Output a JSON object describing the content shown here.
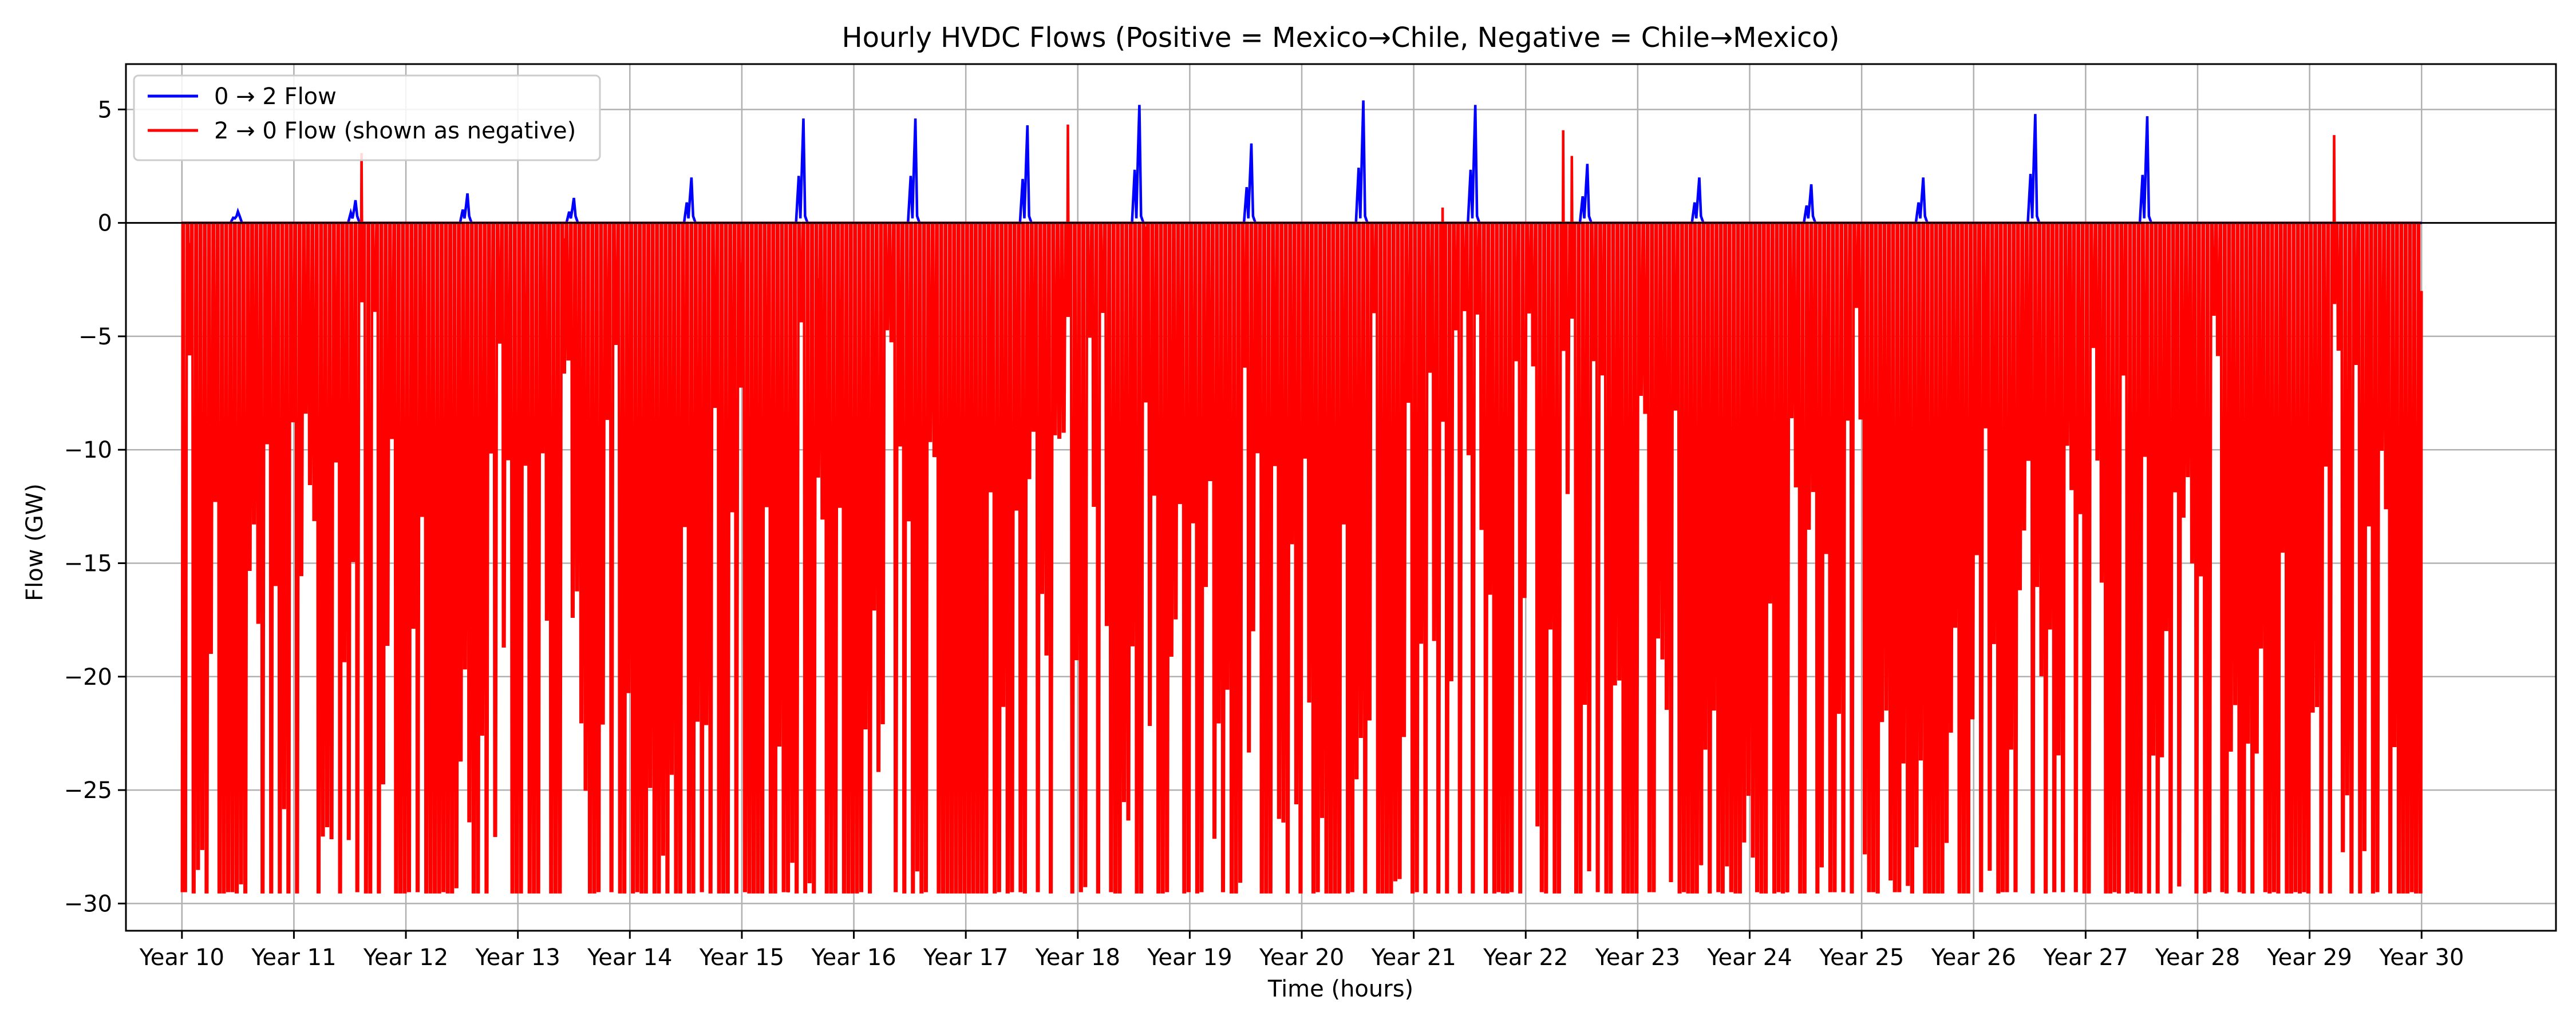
{
  "chart_data": {
    "type": "line",
    "title": "Hourly HVDC Flows (Positive = Mexico→Chile, Negative = Chile→Mexico)",
    "xlabel": "Time (hours)",
    "ylabel": "Flow (GW)",
    "xlim": [
      9.5,
      31.2
    ],
    "ylim": [
      -31.2,
      7
    ],
    "x_ticks": [
      10,
      11,
      12,
      13,
      14,
      15,
      16,
      17,
      18,
      19,
      20,
      21,
      22,
      23,
      24,
      25,
      26,
      27,
      28,
      29,
      30
    ],
    "x_tick_labels": [
      "Year 10",
      "Year 11",
      "Year 12",
      "Year 13",
      "Year 14",
      "Year 15",
      "Year 16",
      "Year 17",
      "Year 18",
      "Year 19",
      "Year 20",
      "Year 21",
      "Year 22",
      "Year 23",
      "Year 24",
      "Year 25",
      "Year 26",
      "Year 27",
      "Year 28",
      "Year 29",
      "Year 30"
    ],
    "y_ticks": [
      -30,
      -25,
      -20,
      -15,
      -10,
      -5,
      0,
      5
    ],
    "y_tick_labels": [
      "−30",
      "−25",
      "−20",
      "−15",
      "−10",
      "−5",
      "0",
      "5"
    ],
    "grid": true,
    "zero_line": true,
    "legend_position": "upper-left",
    "colors": {
      "series_0": "#0000ff",
      "series_1": "#ff0000"
    },
    "series": [
      {
        "name": "0 → 2 Flow",
        "note": "Mostly 0; yearly spike peaks near mid-year",
        "spike_peaks": [
          {
            "x": 10.5,
            "y": 0.5
          },
          {
            "x": 11.55,
            "y": 1.0
          },
          {
            "x": 12.55,
            "y": 1.3
          },
          {
            "x": 13.5,
            "y": 1.1
          },
          {
            "x": 14.55,
            "y": 2.0
          },
          {
            "x": 15.55,
            "y": 4.6
          },
          {
            "x": 16.55,
            "y": 4.6
          },
          {
            "x": 17.55,
            "y": 4.3
          },
          {
            "x": 18.55,
            "y": 5.2
          },
          {
            "x": 19.55,
            "y": 3.5
          },
          {
            "x": 20.55,
            "y": 5.4
          },
          {
            "x": 21.55,
            "y": 5.2
          },
          {
            "x": 22.55,
            "y": 2.6
          },
          {
            "x": 23.55,
            "y": 2.0
          },
          {
            "x": 24.55,
            "y": 1.7
          },
          {
            "x": 25.55,
            "y": 2.0
          },
          {
            "x": 26.55,
            "y": 4.8
          },
          {
            "x": 27.55,
            "y": 4.7
          }
        ]
      },
      {
        "name": "2 → 0 Flow (shown as negative)",
        "note": "Rapid oscillation between 0 and about -29.5 GW throughout Year 10 to Year 30",
        "min_value": -29.5,
        "max_value": 0
      }
    ]
  }
}
